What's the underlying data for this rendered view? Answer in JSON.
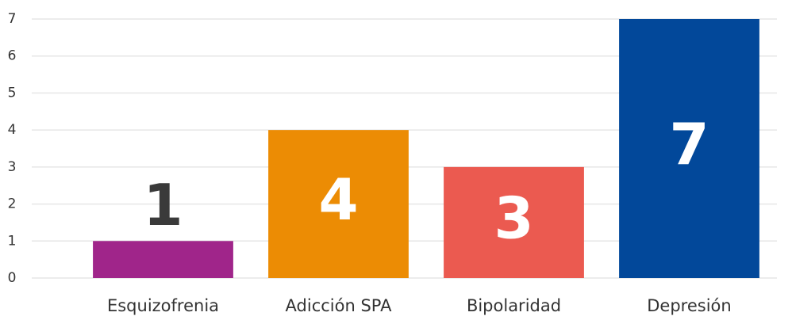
{
  "chart_data": {
    "type": "bar",
    "categories": [
      "Esquizofrenia",
      "Adicción SPA",
      "Bipolaridad",
      "Depresión"
    ],
    "values": [
      1,
      4,
      3,
      7
    ],
    "colors": [
      "#a0258a",
      "#ec8c04",
      "#eb5a50",
      "#02489a"
    ],
    "ylim": [
      0,
      7
    ],
    "yticks": [
      0,
      1,
      2,
      3,
      4,
      5,
      6,
      7
    ],
    "grid": true
  }
}
